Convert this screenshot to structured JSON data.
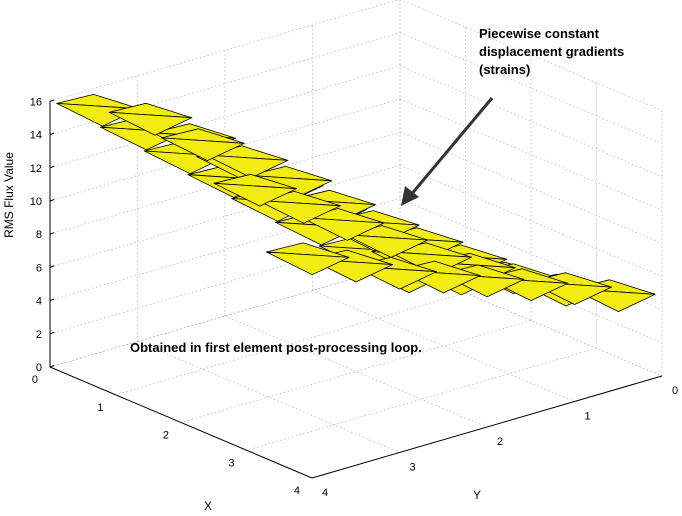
{
  "chart_data": {
    "type": "scatter3d-surface",
    "ylabel_z": "RMS Flux Value",
    "xlabel": "X",
    "ylabel": "Y",
    "x_ticks": [
      "0",
      "1",
      "2",
      "3",
      "4"
    ],
    "y_ticks": [
      "0",
      "1",
      "2",
      "3",
      "4"
    ],
    "z_ticks": [
      "0",
      "2",
      "4",
      "6",
      "8",
      "10",
      "12",
      "14",
      "16"
    ],
    "xlim": [
      0,
      4
    ],
    "ylim": [
      0,
      4
    ],
    "zlim": [
      0,
      16
    ],
    "grid": true,
    "face_color": "#f2ec12",
    "elements": [
      {
        "xi": 0,
        "yi": 0,
        "z": 0.4
      },
      {
        "xi": 0,
        "yi": 1,
        "z": 2.6
      },
      {
        "xi": 0,
        "yi": 2,
        "z": 4.8
      },
      {
        "xi": 0,
        "yi": 3,
        "z": 7.0
      },
      {
        "xi": 0,
        "yi": 4,
        "z": 9.2
      },
      {
        "xi": 0,
        "yi": 5,
        "z": 11.4
      },
      {
        "xi": 0,
        "yi": 6,
        "z": 13.6
      },
      {
        "xi": 0,
        "yi": 7,
        "z": 15.8
      },
      {
        "xi": 1,
        "yi": 0,
        "z": 1.6
      },
      {
        "xi": 1,
        "yi": 1,
        "z": 3.6
      },
      {
        "xi": 1,
        "yi": 2,
        "z": 5.8
      },
      {
        "xi": 1,
        "yi": 3,
        "z": 8.0
      },
      {
        "xi": 1,
        "yi": 4,
        "z": 10.2
      },
      {
        "xi": 1,
        "yi": 5,
        "z": 12.4
      },
      {
        "xi": 1,
        "yi": 6,
        "z": 14.6
      },
      {
        "xi": 1,
        "yi": 7,
        "z": 16.6
      },
      {
        "xi": 2,
        "yi": 0,
        "z": 3.0
      },
      {
        "xi": 2,
        "yi": 1,
        "z": 4.8
      },
      {
        "xi": 2,
        "yi": 2,
        "z": 6.6
      },
      {
        "xi": 2,
        "yi": 3,
        "z": 8.4
      },
      {
        "xi": 2,
        "yi": 4,
        "z": 10.4
      },
      {
        "xi": 2,
        "yi": 5,
        "z": 12.6
      },
      {
        "xi": 2,
        "yi": 6,
        "z": 14.6
      },
      {
        "xi": 2,
        "yi": 7,
        "z": 16.4
      },
      {
        "xi": 3,
        "yi": 0,
        "z": 3.6
      },
      {
        "xi": 3,
        "yi": 1,
        "z": 5.0
      },
      {
        "xi": 3,
        "yi": 2,
        "z": 6.4
      },
      {
        "xi": 3,
        "yi": 3,
        "z": 7.8
      },
      {
        "xi": 3,
        "yi": 4,
        "z": 9.6
      },
      {
        "xi": 3,
        "yi": 5,
        "z": 11.4
      },
      {
        "xi": 3,
        "yi": 6,
        "z": 13.2
      },
      {
        "xi": 3,
        "yi": 7,
        "z": 15.0
      },
      {
        "xi": 4,
        "yi": 0,
        "z": 4.6
      },
      {
        "xi": 4,
        "yi": 1,
        "z": 5.8
      },
      {
        "xi": 4,
        "yi": 2,
        "z": 6.8
      },
      {
        "xi": 4,
        "yi": 3,
        "z": 7.8
      },
      {
        "xi": 4,
        "yi": 4,
        "z": 8.8
      },
      {
        "xi": 4,
        "yi": 5,
        "z": 9.8
      },
      {
        "xi": 4,
        "yi": 6,
        "z": 11.0
      },
      {
        "xi": 4,
        "yi": 7,
        "z": 12.2
      }
    ],
    "annotations": {
      "callout": "Piecewise constant\ndisplacement gradients\n(strains)",
      "note": "Obtained in first element post-processing loop."
    }
  }
}
